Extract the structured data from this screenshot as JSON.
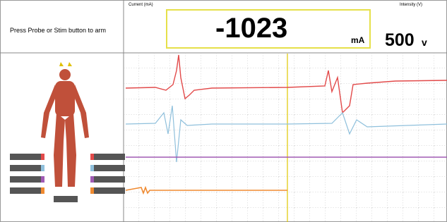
{
  "header": {
    "instruction": "Press Probe or Stim button to arm",
    "current": {
      "label": "Current (mA)",
      "value": -1023,
      "unit": "mA"
    },
    "intensity": {
      "label": "Intensity (V)",
      "value": 500,
      "unit": "v"
    }
  }
}
